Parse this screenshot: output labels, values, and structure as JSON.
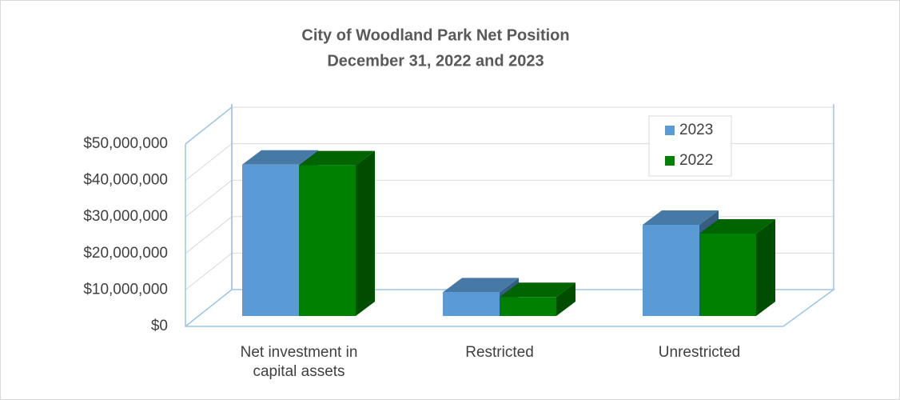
{
  "chart_data": {
    "type": "bar3d",
    "title": "City of Woodland Park Net Position",
    "subtitle": "December 31, 2022 and 2023",
    "categories": [
      "Net investment in capital assets",
      "Restricted",
      "Unrestricted"
    ],
    "series": [
      {
        "name": "2023",
        "color": "#5b9bd5",
        "values": [
          41500000,
          6500000,
          25000000
        ]
      },
      {
        "name": "2022",
        "color": "#008000",
        "values": [
          41300000,
          5200000,
          22600000
        ]
      }
    ],
    "ylim": [
      0,
      50000000
    ],
    "yticks": [
      {
        "value": 0,
        "label": "$0"
      },
      {
        "value": 10000000,
        "label": "$10,000,000"
      },
      {
        "value": 20000000,
        "label": "$20,000,000"
      },
      {
        "value": 30000000,
        "label": "$30,000,000"
      },
      {
        "value": 40000000,
        "label": "$40,000,000"
      },
      {
        "value": 50000000,
        "label": "$50,000,000"
      }
    ],
    "grid": true,
    "legend": "upper right"
  }
}
